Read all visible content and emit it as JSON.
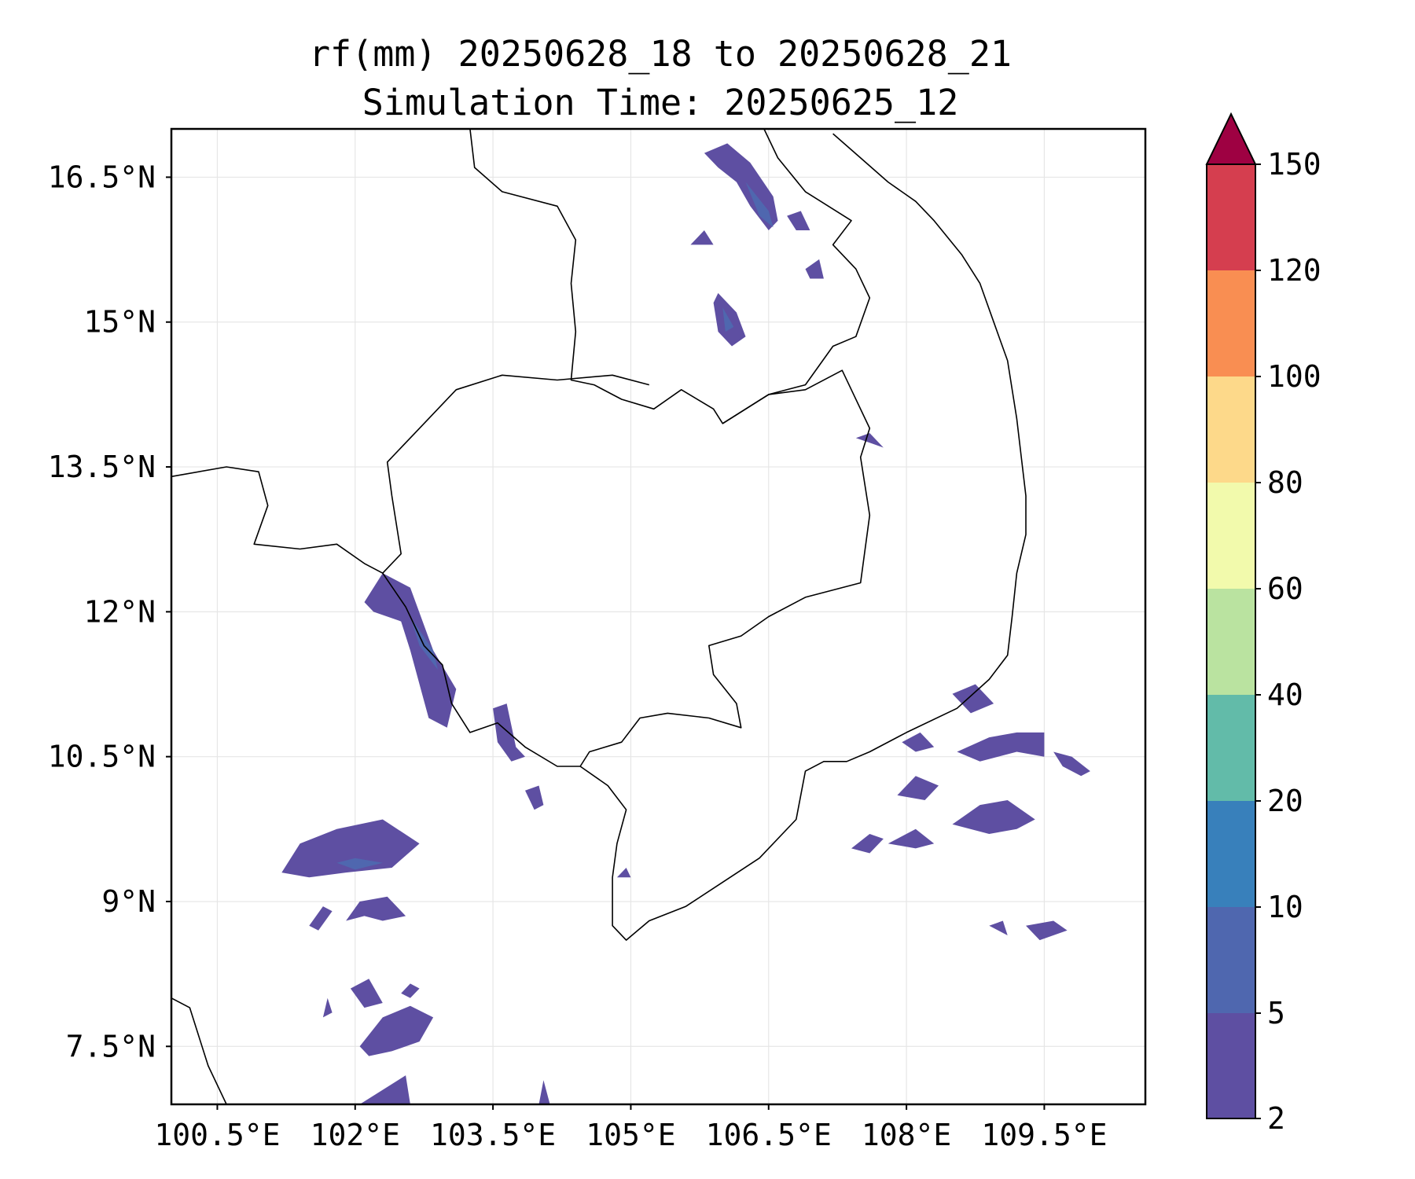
{
  "title": {
    "line1": "rf(mm) 20250628_18 to 20250628_21",
    "line2": "Simulation Time: 20250625_12"
  },
  "map": {
    "projection": "PlateCarree",
    "lon_range": [
      100.0,
      110.6
    ],
    "lat_range": [
      6.9,
      17.0
    ],
    "gridlines": true,
    "coastlines": true,
    "country_borders": true,
    "lon_ticks": [
      {
        "value": 100.5,
        "label": "100.5°E"
      },
      {
        "value": 102.0,
        "label": "102°E"
      },
      {
        "value": 103.5,
        "label": "103.5°E"
      },
      {
        "value": 105.0,
        "label": "105°E"
      },
      {
        "value": 106.5,
        "label": "106.5°E"
      },
      {
        "value": 108.0,
        "label": "108°E"
      },
      {
        "value": 109.5,
        "label": "109.5°E"
      }
    ],
    "lat_ticks": [
      {
        "value": 16.5,
        "label": "16.5°N"
      },
      {
        "value": 15.0,
        "label": "15°N"
      },
      {
        "value": 13.5,
        "label": "13.5°N"
      },
      {
        "value": 12.0,
        "label": "12°N"
      },
      {
        "value": 10.5,
        "label": "10.5°N"
      },
      {
        "value": 9.0,
        "label": "9°N"
      },
      {
        "value": 7.5,
        "label": "7.5°N"
      }
    ],
    "rain_areas": [
      {
        "level": 2,
        "points": [
          [
            101.2,
            9.3
          ],
          [
            101.4,
            9.6
          ],
          [
            101.8,
            9.75
          ],
          [
            102.3,
            9.85
          ],
          [
            102.7,
            9.6
          ],
          [
            102.4,
            9.35
          ],
          [
            101.9,
            9.3
          ],
          [
            101.5,
            9.25
          ]
        ]
      },
      {
        "level": 3,
        "points": [
          [
            101.8,
            9.4
          ],
          [
            102.0,
            9.45
          ],
          [
            102.3,
            9.4
          ],
          [
            102.0,
            9.33
          ]
        ]
      },
      {
        "level": 2,
        "points": [
          [
            101.5,
            8.75
          ],
          [
            101.65,
            8.95
          ],
          [
            101.75,
            8.9
          ],
          [
            101.6,
            8.7
          ]
        ]
      },
      {
        "level": 2,
        "points": [
          [
            101.9,
            8.8
          ],
          [
            102.05,
            9.0
          ],
          [
            102.35,
            9.05
          ],
          [
            102.55,
            8.85
          ],
          [
            102.3,
            8.8
          ],
          [
            102.1,
            8.85
          ]
        ]
      },
      {
        "level": 2,
        "points": [
          [
            101.65,
            7.8
          ],
          [
            101.7,
            8.0
          ],
          [
            101.75,
            7.85
          ]
        ]
      },
      {
        "level": 2,
        "points": [
          [
            101.95,
            8.1
          ],
          [
            102.15,
            8.2
          ],
          [
            102.3,
            7.95
          ],
          [
            102.1,
            7.9
          ]
        ]
      },
      {
        "level": 2,
        "points": [
          [
            102.05,
            7.5
          ],
          [
            102.3,
            7.8
          ],
          [
            102.6,
            7.92
          ],
          [
            102.85,
            7.8
          ],
          [
            102.7,
            7.55
          ],
          [
            102.4,
            7.45
          ],
          [
            102.15,
            7.4
          ]
        ]
      },
      {
        "level": 2,
        "points": [
          [
            102.5,
            8.05
          ],
          [
            102.6,
            8.15
          ],
          [
            102.7,
            8.1
          ],
          [
            102.6,
            8.0
          ]
        ]
      },
      {
        "level": 2,
        "points": [
          [
            102.05,
            6.9
          ],
          [
            102.3,
            7.05
          ],
          [
            102.55,
            7.2
          ],
          [
            102.6,
            6.9
          ]
        ]
      },
      {
        "level": 2,
        "points": [
          [
            104.0,
            6.9
          ],
          [
            104.05,
            7.15
          ],
          [
            104.12,
            6.9
          ]
        ]
      },
      {
        "level": 2,
        "points": [
          [
            102.3,
            12.4
          ],
          [
            102.6,
            12.25
          ],
          [
            102.85,
            11.6
          ],
          [
            103.1,
            11.2
          ],
          [
            103.0,
            10.8
          ],
          [
            102.8,
            10.9
          ],
          [
            102.6,
            11.6
          ],
          [
            102.5,
            11.9
          ],
          [
            102.2,
            12.0
          ],
          [
            102.1,
            12.1
          ]
        ]
      },
      {
        "level": 3,
        "points": [
          [
            102.6,
            11.95
          ],
          [
            102.85,
            11.6
          ],
          [
            102.9,
            11.4
          ],
          [
            102.7,
            11.65
          ]
        ]
      },
      {
        "level": 2,
        "points": [
          [
            103.5,
            11.0
          ],
          [
            103.65,
            11.05
          ],
          [
            103.75,
            10.6
          ],
          [
            103.85,
            10.5
          ],
          [
            103.7,
            10.45
          ],
          [
            103.55,
            10.65
          ]
        ]
      },
      {
        "level": 2,
        "points": [
          [
            103.85,
            10.15
          ],
          [
            104.0,
            10.2
          ],
          [
            104.05,
            10.0
          ],
          [
            103.95,
            9.95
          ]
        ]
      },
      {
        "level": 2,
        "points": [
          [
            104.85,
            9.25
          ],
          [
            104.95,
            9.35
          ],
          [
            105.0,
            9.25
          ]
        ]
      },
      {
        "level": 2,
        "points": [
          [
            106.05,
            16.85
          ],
          [
            106.3,
            16.65
          ],
          [
            106.55,
            16.3
          ],
          [
            106.6,
            16.05
          ],
          [
            106.5,
            15.95
          ],
          [
            106.3,
            16.2
          ],
          [
            106.15,
            16.45
          ],
          [
            105.95,
            16.6
          ],
          [
            105.8,
            16.75
          ]
        ]
      },
      {
        "level": 3,
        "points": [
          [
            106.25,
            16.45
          ],
          [
            106.5,
            16.15
          ],
          [
            106.55,
            15.98
          ],
          [
            106.4,
            16.1
          ]
        ]
      },
      {
        "level": 2,
        "points": [
          [
            105.95,
            15.3
          ],
          [
            106.15,
            15.1
          ],
          [
            106.25,
            14.85
          ],
          [
            106.1,
            14.75
          ],
          [
            105.95,
            14.9
          ],
          [
            105.9,
            15.2
          ]
        ]
      },
      {
        "level": 3,
        "points": [
          [
            106.0,
            15.15
          ],
          [
            106.12,
            14.95
          ],
          [
            106.03,
            14.9
          ]
        ]
      },
      {
        "level": 2,
        "points": [
          [
            106.7,
            16.1
          ],
          [
            106.85,
            16.15
          ],
          [
            106.95,
            15.95
          ],
          [
            106.8,
            15.95
          ]
        ]
      },
      {
        "level": 2,
        "points": [
          [
            106.9,
            15.55
          ],
          [
            107.05,
            15.65
          ],
          [
            107.1,
            15.45
          ],
          [
            106.95,
            15.45
          ]
        ]
      },
      {
        "level": 2,
        "points": [
          [
            105.65,
            15.8
          ],
          [
            105.8,
            15.95
          ],
          [
            105.9,
            15.8
          ]
        ]
      },
      {
        "level": 2,
        "points": [
          [
            107.45,
            13.8
          ],
          [
            107.6,
            13.85
          ],
          [
            107.75,
            13.7
          ],
          [
            107.6,
            13.75
          ]
        ]
      },
      {
        "level": 2,
        "points": [
          [
            108.5,
            11.15
          ],
          [
            108.75,
            11.25
          ],
          [
            108.95,
            11.05
          ],
          [
            108.7,
            10.95
          ]
        ]
      },
      {
        "level": 2,
        "points": [
          [
            108.55,
            10.55
          ],
          [
            108.9,
            10.7
          ],
          [
            109.2,
            10.75
          ],
          [
            109.5,
            10.75
          ],
          [
            109.5,
            10.5
          ],
          [
            109.2,
            10.55
          ],
          [
            108.8,
            10.45
          ]
        ]
      },
      {
        "level": 2,
        "points": [
          [
            109.6,
            10.55
          ],
          [
            109.8,
            10.5
          ],
          [
            110.0,
            10.35
          ],
          [
            109.9,
            10.3
          ],
          [
            109.7,
            10.4
          ]
        ]
      },
      {
        "level": 2,
        "points": [
          [
            107.95,
            10.65
          ],
          [
            108.15,
            10.75
          ],
          [
            108.3,
            10.6
          ],
          [
            108.1,
            10.55
          ]
        ]
      },
      {
        "level": 2,
        "points": [
          [
            107.9,
            10.1
          ],
          [
            108.1,
            10.3
          ],
          [
            108.35,
            10.2
          ],
          [
            108.2,
            10.05
          ]
        ]
      },
      {
        "level": 2,
        "points": [
          [
            108.5,
            9.8
          ],
          [
            108.8,
            10.0
          ],
          [
            109.1,
            10.05
          ],
          [
            109.4,
            9.85
          ],
          [
            109.2,
            9.75
          ],
          [
            108.9,
            9.7
          ]
        ]
      },
      {
        "level": 2,
        "points": [
          [
            107.4,
            9.55
          ],
          [
            107.6,
            9.5
          ],
          [
            107.75,
            9.65
          ],
          [
            107.6,
            9.7
          ]
        ]
      },
      {
        "level": 2,
        "points": [
          [
            107.8,
            9.6
          ],
          [
            108.1,
            9.55
          ],
          [
            108.3,
            9.6
          ],
          [
            108.1,
            9.75
          ]
        ]
      },
      {
        "level": 2,
        "points": [
          [
            108.9,
            8.75
          ],
          [
            109.05,
            8.8
          ],
          [
            109.1,
            8.65
          ]
        ]
      },
      {
        "level": 2,
        "points": [
          [
            109.3,
            8.75
          ],
          [
            109.6,
            8.8
          ],
          [
            109.75,
            8.7
          ],
          [
            109.45,
            8.6
          ]
        ]
      }
    ],
    "coastline": [
      [
        100.0,
        13.4
      ],
      [
        100.6,
        13.5
      ],
      [
        100.95,
        13.45
      ],
      [
        101.05,
        13.1
      ],
      [
        100.9,
        12.7
      ],
      [
        101.4,
        12.65
      ],
      [
        101.8,
        12.7
      ],
      [
        102.1,
        12.5
      ],
      [
        102.3,
        12.4
      ]
    ],
    "coastline_2": [
      [
        102.3,
        12.4
      ],
      [
        102.55,
        12.05
      ],
      [
        102.75,
        11.65
      ],
      [
        102.95,
        11.45
      ],
      [
        103.05,
        11.05
      ],
      [
        103.25,
        10.75
      ],
      [
        103.55,
        10.85
      ],
      [
        103.85,
        10.6
      ],
      [
        104.2,
        10.4
      ],
      [
        104.45,
        10.4
      ],
      [
        104.75,
        10.2
      ],
      [
        104.95,
        9.95
      ],
      [
        104.85,
        9.6
      ],
      [
        104.8,
        9.25
      ],
      [
        104.8,
        8.75
      ],
      [
        104.95,
        8.6
      ],
      [
        105.2,
        8.8
      ],
      [
        105.6,
        8.95
      ],
      [
        106.0,
        9.2
      ],
      [
        106.4,
        9.45
      ],
      [
        106.8,
        9.85
      ],
      [
        106.9,
        10.35
      ],
      [
        107.1,
        10.45
      ],
      [
        107.35,
        10.45
      ],
      [
        107.6,
        10.55
      ],
      [
        108.0,
        10.75
      ],
      [
        108.55,
        11.0
      ],
      [
        108.9,
        11.3
      ],
      [
        109.1,
        11.55
      ],
      [
        109.15,
        11.95
      ],
      [
        109.2,
        12.4
      ],
      [
        109.3,
        12.8
      ],
      [
        109.3,
        13.2
      ],
      [
        109.25,
        13.6
      ],
      [
        109.2,
        14.0
      ],
      [
        109.1,
        14.6
      ],
      [
        108.95,
        15.0
      ],
      [
        108.8,
        15.4
      ],
      [
        108.6,
        15.7
      ],
      [
        108.3,
        16.05
      ],
      [
        108.1,
        16.25
      ],
      [
        107.8,
        16.45
      ],
      [
        107.5,
        16.7
      ],
      [
        107.2,
        16.95
      ]
    ],
    "coastline_3": [
      [
        100.0,
        8.0
      ],
      [
        100.2,
        7.9
      ],
      [
        100.3,
        7.6
      ],
      [
        100.4,
        7.3
      ],
      [
        100.6,
        6.9
      ]
    ],
    "border_1": [
      [
        103.25,
        17.0
      ],
      [
        103.3,
        16.6
      ],
      [
        103.6,
        16.35
      ],
      [
        104.2,
        16.2
      ],
      [
        104.4,
        15.85
      ],
      [
        104.35,
        15.4
      ],
      [
        104.4,
        14.9
      ],
      [
        104.35,
        14.4
      ],
      [
        104.6,
        14.35
      ],
      [
        104.9,
        14.2
      ],
      [
        105.25,
        14.1
      ],
      [
        105.55,
        14.3
      ],
      [
        105.9,
        14.1
      ],
      [
        106.0,
        13.95
      ],
      [
        106.5,
        14.25
      ],
      [
        106.9,
        14.35
      ],
      [
        107.2,
        14.75
      ],
      [
        107.45,
        14.85
      ],
      [
        107.6,
        15.25
      ],
      [
        107.45,
        15.55
      ],
      [
        107.2,
        15.8
      ],
      [
        107.4,
        16.05
      ],
      [
        106.9,
        16.35
      ],
      [
        106.6,
        16.7
      ],
      [
        106.45,
        17.0
      ]
    ],
    "border_2": [
      [
        102.3,
        12.4
      ],
      [
        102.5,
        12.6
      ],
      [
        102.4,
        13.2
      ],
      [
        102.35,
        13.55
      ],
      [
        102.7,
        13.9
      ],
      [
        103.1,
        14.3
      ],
      [
        103.6,
        14.45
      ],
      [
        104.2,
        14.4
      ],
      [
        104.8,
        14.45
      ],
      [
        105.2,
        14.35
      ]
    ],
    "border_3": [
      [
        106.0,
        13.95
      ],
      [
        106.5,
        14.25
      ],
      [
        106.9,
        14.3
      ],
      [
        107.3,
        14.5
      ],
      [
        107.6,
        13.9
      ],
      [
        107.5,
        13.6
      ],
      [
        107.6,
        13.0
      ],
      [
        107.5,
        12.3
      ],
      [
        106.9,
        12.15
      ],
      [
        106.5,
        11.95
      ],
      [
        106.2,
        11.75
      ],
      [
        105.85,
        11.65
      ],
      [
        105.9,
        11.35
      ],
      [
        106.15,
        11.05
      ],
      [
        106.2,
        10.8
      ],
      [
        105.85,
        10.9
      ],
      [
        105.4,
        10.95
      ],
      [
        105.1,
        10.9
      ],
      [
        104.9,
        10.65
      ],
      [
        104.55,
        10.55
      ],
      [
        104.45,
        10.4
      ]
    ]
  }
}
